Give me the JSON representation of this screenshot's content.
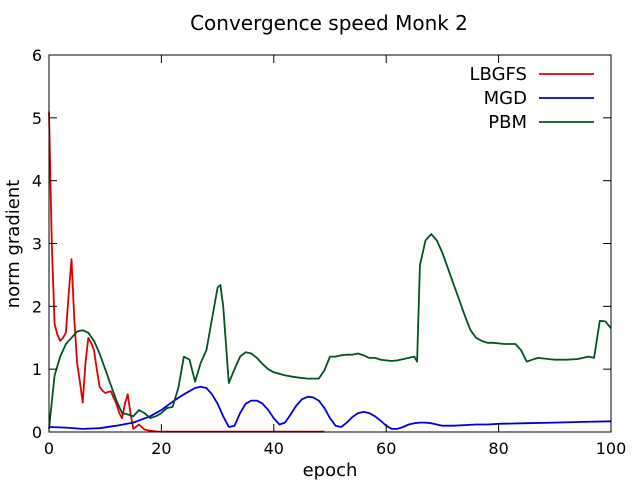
{
  "chart_data": {
    "type": "line",
    "title": "Convergence speed Monk 2",
    "xlabel": "epoch",
    "ylabel": "norm gradient",
    "xlim": [
      0,
      100
    ],
    "ylim": [
      0,
      6
    ],
    "xticks": [
      "0",
      "20",
      "40",
      "60",
      "80",
      "100"
    ],
    "yticks": [
      "0",
      "1",
      "2",
      "3",
      "4",
      "5",
      "6"
    ],
    "grid": false,
    "legend_position": "top-right",
    "series": [
      {
        "name": "LBGFS",
        "color": "#dd0000",
        "x": [
          0,
          0.5,
          1,
          1.5,
          2,
          2.5,
          3,
          3.5,
          4,
          4.5,
          5,
          5.5,
          6,
          6.5,
          7,
          7.5,
          8,
          8.5,
          9,
          9.5,
          10,
          11,
          12,
          12.5,
          13,
          13.5,
          14,
          14.5,
          15,
          16,
          17,
          18,
          19,
          20,
          25,
          30,
          35,
          40,
          45,
          49
        ],
        "y": [
          5.1,
          3.0,
          1.72,
          1.55,
          1.45,
          1.5,
          1.58,
          2.2,
          2.75,
          1.8,
          1.1,
          0.8,
          0.47,
          1.1,
          1.5,
          1.42,
          1.3,
          1.0,
          0.72,
          0.66,
          0.62,
          0.65,
          0.45,
          0.3,
          0.22,
          0.45,
          0.6,
          0.3,
          0.05,
          0.12,
          0.04,
          0.02,
          0.01,
          0.005,
          0.005,
          0.005,
          0.005,
          0.005,
          0.005,
          0.005
        ]
      },
      {
        "name": "MGD",
        "color": "#0000dd",
        "x": [
          0,
          3,
          6,
          9,
          12,
          15,
          18,
          20,
          22,
          24,
          26,
          27,
          28,
          29,
          30,
          31,
          32,
          33,
          34,
          35,
          36,
          37,
          38,
          39,
          40,
          41,
          42,
          43,
          44,
          45,
          46,
          47,
          48,
          49,
          50,
          51,
          52,
          53,
          54,
          55,
          56,
          57,
          58,
          59,
          60,
          61,
          62,
          63,
          64,
          65,
          66,
          67,
          68,
          69,
          70,
          72,
          74,
          76,
          78,
          80,
          85,
          90,
          95,
          100
        ],
        "y": [
          0.08,
          0.07,
          0.05,
          0.06,
          0.1,
          0.15,
          0.25,
          0.35,
          0.48,
          0.6,
          0.7,
          0.72,
          0.7,
          0.6,
          0.45,
          0.25,
          0.08,
          0.1,
          0.3,
          0.45,
          0.5,
          0.5,
          0.45,
          0.35,
          0.22,
          0.12,
          0.15,
          0.28,
          0.42,
          0.52,
          0.56,
          0.55,
          0.5,
          0.38,
          0.22,
          0.1,
          0.08,
          0.15,
          0.24,
          0.3,
          0.32,
          0.3,
          0.25,
          0.18,
          0.1,
          0.05,
          0.05,
          0.08,
          0.12,
          0.14,
          0.15,
          0.15,
          0.14,
          0.12,
          0.1,
          0.1,
          0.11,
          0.12,
          0.12,
          0.13,
          0.14,
          0.15,
          0.16,
          0.17
        ]
      },
      {
        "name": "PBM",
        "color": "#005522",
        "x": [
          0,
          1,
          2,
          3,
          4,
          5,
          6,
          7,
          8,
          9,
          10,
          11,
          12,
          13,
          14,
          15,
          16,
          17,
          18,
          19,
          20,
          21,
          22,
          23,
          24,
          25,
          26,
          27,
          28,
          29,
          30,
          30.5,
          31,
          32,
          33,
          34,
          35,
          36,
          37,
          38,
          39,
          40,
          42,
          44,
          46,
          48,
          49,
          50,
          51,
          52,
          53,
          54,
          55,
          56,
          57,
          58,
          59,
          60,
          61,
          62,
          63,
          64,
          65,
          65.5,
          66,
          67,
          68,
          69,
          70,
          71,
          72,
          73,
          74,
          75,
          76,
          77,
          78,
          79,
          80,
          81,
          82,
          83,
          84,
          85,
          86,
          87,
          88,
          89,
          90,
          92,
          94,
          95,
          96,
          97,
          98,
          99,
          100
        ],
        "y": [
          0.05,
          0.9,
          1.2,
          1.4,
          1.5,
          1.6,
          1.62,
          1.58,
          1.45,
          1.25,
          1.0,
          0.75,
          0.5,
          0.3,
          0.28,
          0.25,
          0.35,
          0.3,
          0.22,
          0.25,
          0.3,
          0.38,
          0.4,
          0.7,
          1.2,
          1.15,
          0.8,
          1.1,
          1.3,
          1.8,
          2.3,
          2.34,
          2.0,
          0.78,
          1.0,
          1.2,
          1.27,
          1.25,
          1.18,
          1.08,
          1.0,
          0.95,
          0.9,
          0.87,
          0.85,
          0.85,
          0.98,
          1.2,
          1.2,
          1.22,
          1.23,
          1.23,
          1.25,
          1.22,
          1.18,
          1.18,
          1.15,
          1.14,
          1.13,
          1.14,
          1.16,
          1.18,
          1.2,
          1.12,
          2.65,
          3.05,
          3.15,
          3.05,
          2.85,
          2.6,
          2.35,
          2.1,
          1.85,
          1.62,
          1.5,
          1.45,
          1.42,
          1.42,
          1.41,
          1.4,
          1.4,
          1.4,
          1.3,
          1.12,
          1.15,
          1.18,
          1.17,
          1.16,
          1.15,
          1.15,
          1.16,
          1.18,
          1.2,
          1.18,
          1.77,
          1.76,
          1.65
        ]
      }
    ]
  }
}
